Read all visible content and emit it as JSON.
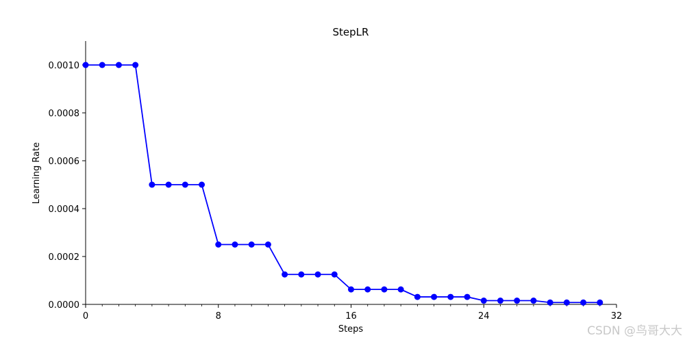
{
  "chart_data": {
    "type": "line",
    "title": "StepLR",
    "xlabel": "Steps",
    "ylabel": "Learning Rate",
    "xlim": [
      0,
      32
    ],
    "ylim": [
      0,
      0.0011
    ],
    "xticks": [
      "0",
      "8",
      "16",
      "24",
      "32"
    ],
    "yticks": [
      "0.0000",
      "0.0002",
      "0.0004",
      "0.0006",
      "0.0008",
      "0.0010"
    ],
    "grid": false,
    "series": [
      {
        "color": "#0000ff",
        "marker": "circle",
        "x": [
          0,
          1,
          2,
          3,
          4,
          5,
          6,
          7,
          8,
          9,
          10,
          11,
          12,
          13,
          14,
          15,
          16,
          17,
          18,
          19,
          20,
          21,
          22,
          23,
          24,
          25,
          26,
          27,
          28,
          29,
          30,
          31
        ],
        "y": [
          0.001,
          0.001,
          0.001,
          0.001,
          0.0005,
          0.0005,
          0.0005,
          0.0005,
          0.00025,
          0.00025,
          0.00025,
          0.00025,
          0.000125,
          0.000125,
          0.000125,
          0.000125,
          6.25e-05,
          6.25e-05,
          6.25e-05,
          6.25e-05,
          3.125e-05,
          3.125e-05,
          3.125e-05,
          3.125e-05,
          1.5625e-05,
          1.5625e-05,
          1.5625e-05,
          1.5625e-05,
          7.8125e-06,
          7.8125e-06,
          7.8125e-06,
          7.8125e-06
        ]
      }
    ]
  },
  "watermark": "CSDN @鸟哥大大"
}
